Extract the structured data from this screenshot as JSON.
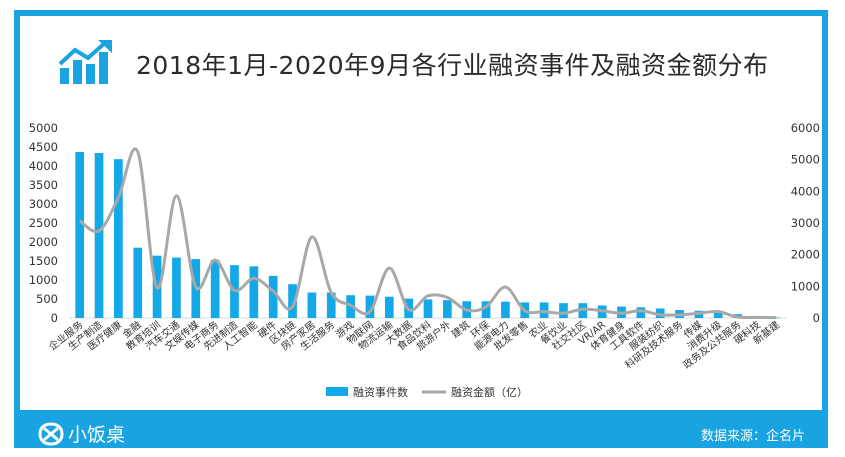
{
  "title": "2018年1月-2020年9月各行业融资事件及融资金额分布",
  "brand": {
    "name": "小饭桌"
  },
  "source": "数据来源：企名片",
  "colors": {
    "frame": "#19a3e1",
    "bar": "#13a8e8",
    "line": "#a8a8a8"
  },
  "chart_data": {
    "type": "bar",
    "categories": [
      "企业服务",
      "生产制造",
      "医疗健康",
      "金融",
      "教育培训",
      "汽车交通",
      "文娱传媒",
      "电子商务",
      "先进制造",
      "人工智能",
      "硬件",
      "区块链",
      "房产家居",
      "生活服务",
      "游戏",
      "物联网",
      "物流运输",
      "大数据",
      "食品饮料",
      "旅游户外",
      "建筑",
      "环保",
      "能源电力",
      "批发零售",
      "农业",
      "餐饮业",
      "社交社区",
      "VR/AR",
      "体育健身",
      "工具软件",
      "服装纺织",
      "科研及技术服务",
      "传媒",
      "消费升级",
      "政务及公共服务",
      "硬科技",
      "新基建"
    ],
    "series": [
      {
        "name": "融资事件数",
        "type": "bar",
        "axis": "left",
        "values": [
          4370,
          4340,
          4180,
          1850,
          1640,
          1590,
          1550,
          1530,
          1390,
          1360,
          1110,
          890,
          670,
          670,
          600,
          590,
          560,
          510,
          490,
          470,
          440,
          440,
          430,
          410,
          410,
          390,
          390,
          330,
          300,
          280,
          250,
          210,
          190,
          170,
          100,
          20,
          10
        ]
      },
      {
        "name": "融资金额（亿）",
        "type": "line",
        "axis": "right",
        "values": [
          3070,
          2750,
          3800,
          5250,
          950,
          3860,
          980,
          1830,
          870,
          1250,
          850,
          350,
          2560,
          800,
          400,
          200,
          1580,
          270,
          700,
          650,
          250,
          350,
          980,
          230,
          200,
          150,
          280,
          230,
          150,
          230,
          100,
          100,
          150,
          200,
          30,
          20,
          10
        ]
      }
    ],
    "y_left": {
      "min": 0,
      "max": 5000,
      "step": 500,
      "ticks": [
        "0",
        "500",
        "1000",
        "1500",
        "2000",
        "2500",
        "3000",
        "3500",
        "4000",
        "4500",
        "5000"
      ]
    },
    "y_right": {
      "min": 0,
      "max": 6000,
      "step": 1000,
      "ticks": [
        "0",
        "1000",
        "2000",
        "3000",
        "4000",
        "5000",
        "6000"
      ]
    },
    "legend": {
      "position": "bottom"
    },
    "grid": false
  }
}
